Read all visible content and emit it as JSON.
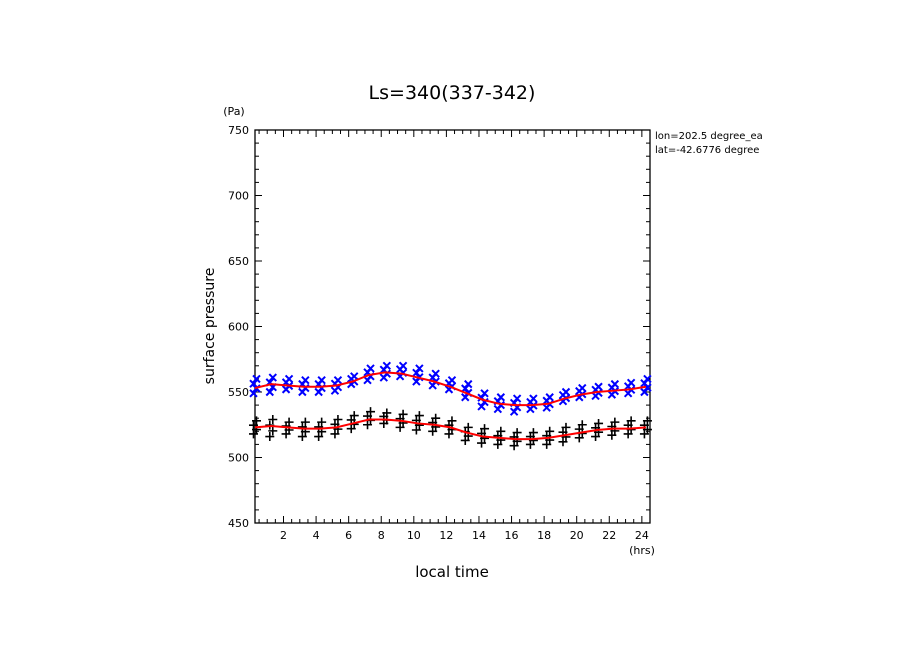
{
  "chart_data": {
    "type": "scatter",
    "title": "Ls=340(337-342)",
    "xlabel": "local time",
    "xunit": "(hrs)",
    "ylabel": "surface pressure",
    "yunit": "(Pa)",
    "annotation_lines": [
      "lon=202.5 degree_ea",
      "lat=-42.6776 degree"
    ],
    "xlim": [
      0.25,
      24.5
    ],
    "ylim": [
      450,
      750
    ],
    "x_ticks": [
      2,
      4,
      6,
      8,
      10,
      12,
      14,
      16,
      18,
      20,
      22,
      24
    ],
    "y_ticks": [
      450,
      500,
      550,
      600,
      650,
      700,
      750
    ],
    "grid": false,
    "colors": {
      "upper_markers": "#0000ff",
      "lower_markers": "#000000",
      "fit_line": "#ff0000",
      "axes": "#000000"
    },
    "series": [
      {
        "marker": "x",
        "color": "#0000ff",
        "x": [
          0.25,
          1.25,
          2.25,
          3.25,
          4.25,
          5.25,
          6.25,
          7.25,
          8.25,
          9.25,
          10.25,
          11.25,
          12.25,
          13.25,
          14.25,
          15.25,
          16.25,
          17.25,
          18.25,
          19.25,
          20.25,
          21.25,
          22.25,
          23.25,
          24.25
        ],
        "y_low": [
          549,
          550,
          552,
          550,
          550,
          551,
          556,
          559,
          561,
          562,
          558,
          555,
          552,
          546,
          539,
          537,
          535,
          537,
          538,
          543,
          546,
          547,
          548,
          549,
          550
        ],
        "y_high": [
          560,
          561,
          560,
          559,
          559,
          559,
          562,
          568,
          570,
          570,
          568,
          564,
          559,
          556,
          549,
          546,
          545,
          545,
          546,
          550,
          553,
          554,
          556,
          557,
          560
        ]
      },
      {
        "marker": "+",
        "color": "#000000",
        "x": [
          0.25,
          1.25,
          2.25,
          3.25,
          4.25,
          5.25,
          6.25,
          7.25,
          8.25,
          9.25,
          10.25,
          11.25,
          12.25,
          13.25,
          14.25,
          15.25,
          16.25,
          17.25,
          18.25,
          19.25,
          20.25,
          21.25,
          22.25,
          23.25,
          24.25
        ],
        "y_low": [
          518,
          516,
          518,
          516,
          516,
          518,
          522,
          525,
          526,
          523,
          521,
          520,
          518,
          513,
          511,
          510,
          509,
          510,
          510,
          512,
          515,
          516,
          517,
          518,
          518
        ],
        "y_high": [
          528,
          529,
          527,
          527,
          527,
          529,
          532,
          535,
          534,
          533,
          532,
          530,
          528,
          523,
          522,
          520,
          519,
          519,
          520,
          523,
          525,
          526,
          527,
          528,
          528
        ]
      },
      {
        "marker": "line",
        "color": "#ff0000",
        "name_shown": false,
        "x": [
          0.25,
          1.25,
          2.25,
          3.25,
          4.25,
          5.25,
          6.25,
          7.25,
          8.25,
          9.25,
          10.25,
          11.25,
          12.25,
          13.25,
          14.25,
          15.25,
          16.25,
          17.25,
          18.25,
          19.25,
          20.25,
          21.25,
          22.25,
          23.25,
          24.25
        ],
        "y": [
          553,
          556,
          555,
          554,
          554,
          555,
          558,
          563,
          565,
          564,
          561,
          558,
          554,
          549,
          544,
          541,
          540,
          540,
          541,
          545,
          548,
          550,
          551,
          552,
          554
        ]
      },
      {
        "marker": "line",
        "color": "#ff0000",
        "x": [
          0.25,
          1.25,
          2.25,
          3.25,
          4.25,
          5.25,
          6.25,
          7.25,
          8.25,
          9.25,
          10.25,
          11.25,
          12.25,
          13.25,
          14.25,
          15.25,
          16.25,
          17.25,
          18.25,
          19.25,
          20.25,
          21.25,
          22.25,
          23.25,
          24.25
        ],
        "y": [
          523,
          524,
          523,
          522,
          522,
          523,
          526,
          529,
          529,
          528,
          526,
          525,
          523,
          519,
          516,
          515,
          514,
          514,
          515,
          517,
          519,
          521,
          522,
          522,
          523
        ]
      }
    ]
  }
}
